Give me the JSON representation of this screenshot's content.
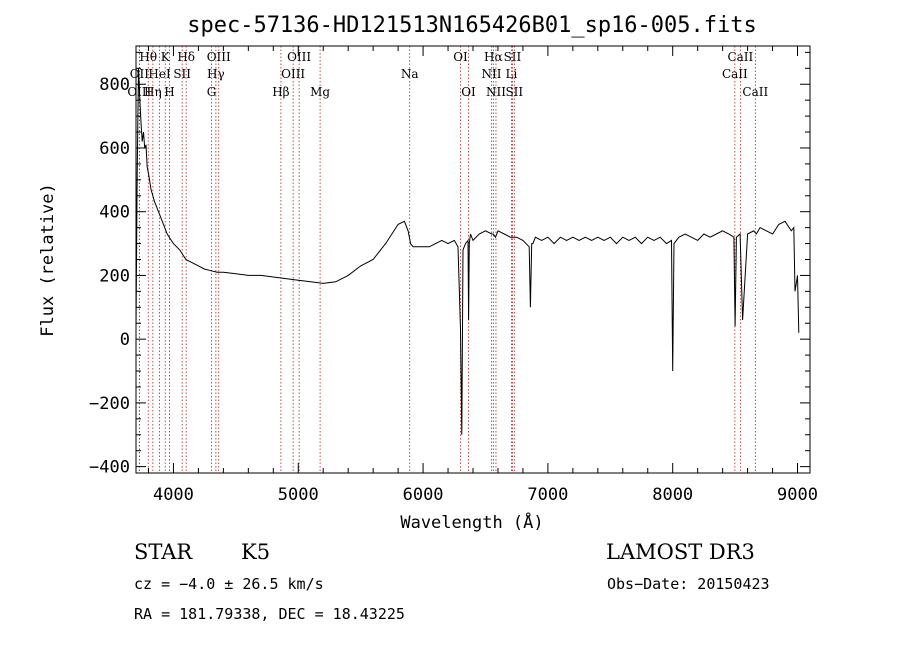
{
  "chart_data": {
    "type": "line",
    "title": "spec-57136-HD121513N165426B01_sp16-005.fits",
    "xlabel": "Wavelength (Å)",
    "ylabel": "Flux (relative)",
    "xlim": [
      3700,
      9100
    ],
    "ylim": [
      -420,
      920
    ],
    "x_ticks": [
      4000,
      5000,
      6000,
      7000,
      8000,
      9000
    ],
    "x_tick_labels": [
      "4000",
      "5000",
      "6000",
      "7000",
      "8000",
      "9000"
    ],
    "y_ticks": [
      -400,
      -200,
      0,
      200,
      400,
      600,
      800
    ],
    "y_tick_labels": [
      "−400",
      "−200",
      "0",
      "200",
      "400",
      "600",
      "800"
    ],
    "series": [
      {
        "name": "spectrum",
        "x": [
          3700,
          3710,
          3720,
          3730,
          3740,
          3750,
          3760,
          3770,
          3780,
          3790,
          3800,
          3820,
          3850,
          3880,
          3900,
          3950,
          4000,
          4050,
          4100,
          4150,
          4200,
          4250,
          4300,
          4350,
          4400,
          4500,
          4600,
          4700,
          4800,
          4900,
          5000,
          5100,
          5200,
          5300,
          5400,
          5500,
          5600,
          5700,
          5750,
          5800,
          5850,
          5880,
          5900,
          5920,
          5950,
          6000,
          6050,
          6100,
          6150,
          6200,
          6250,
          6280,
          6300,
          6310,
          6320,
          6340,
          6360,
          6365,
          6370,
          6380,
          6400,
          6450,
          6500,
          6550,
          6563,
          6580,
          6600,
          6650,
          6700,
          6750,
          6800,
          6850,
          6860,
          6870,
          6880,
          6900,
          6950,
          7000,
          7050,
          7100,
          7150,
          7200,
          7250,
          7300,
          7350,
          7400,
          7450,
          7500,
          7550,
          7600,
          7650,
          7700,
          7750,
          7800,
          7850,
          7900,
          7950,
          7990,
          8000,
          8010,
          8050,
          8100,
          8150,
          8200,
          8250,
          8300,
          8350,
          8400,
          8450,
          8490,
          8500,
          8510,
          8540,
          8560,
          8600,
          8650,
          8670,
          8700,
          8750,
          8800,
          8850,
          8900,
          8950,
          8970,
          8980,
          9000,
          9010
        ],
        "y": [
          30,
          520,
          850,
          760,
          680,
          620,
          650,
          600,
          610,
          540,
          520,
          470,
          430,
          400,
          380,
          330,
          300,
          280,
          250,
          240,
          230,
          220,
          215,
          210,
          210,
          205,
          200,
          200,
          195,
          190,
          185,
          180,
          175,
          180,
          200,
          230,
          250,
          300,
          330,
          360,
          370,
          340,
          300,
          290,
          290,
          290,
          290,
          300,
          310,
          300,
          310,
          290,
          30,
          -300,
          280,
          300,
          310,
          60,
          300,
          330,
          310,
          330,
          340,
          330,
          330,
          320,
          340,
          330,
          320,
          320,
          310,
          290,
          100,
          300,
          300,
          320,
          310,
          320,
          300,
          320,
          310,
          320,
          310,
          320,
          310,
          320,
          310,
          320,
          300,
          320,
          310,
          320,
          300,
          320,
          310,
          320,
          300,
          310,
          -100,
          300,
          320,
          330,
          320,
          310,
          330,
          320,
          330,
          340,
          330,
          320,
          40,
          320,
          330,
          60,
          330,
          340,
          330,
          350,
          340,
          330,
          360,
          370,
          340,
          350,
          150,
          200,
          20
        ]
      }
    ],
    "lines": [
      {
        "label": "Hθ",
        "x": 3798,
        "row": 1
      },
      {
        "label": "OII",
        "x": 3727,
        "row": 2
      },
      {
        "label": "OIII",
        "x": 3727,
        "row": 3
      },
      {
        "label": "K",
        "x": 3934,
        "row": 1
      },
      {
        "label": "HeI",
        "x": 3889,
        "row": 2
      },
      {
        "label": "Hη",
        "x": 3835,
        "row": 3
      },
      {
        "label": "SII",
        "x": 4070,
        "row": 2
      },
      {
        "label": "H",
        "x": 3968,
        "row": 3
      },
      {
        "label": "Hδ",
        "x": 4102,
        "row": 1
      },
      {
        "label": "OIII",
        "x": 4363,
        "row": 1
      },
      {
        "label": "Hγ",
        "x": 4340,
        "row": 2
      },
      {
        "label": "G",
        "x": 4305,
        "row": 3
      },
      {
        "label": "OIII",
        "x": 5007,
        "row": 1
      },
      {
        "label": "OIII",
        "x": 4959,
        "row": 2
      },
      {
        "label": "Hβ",
        "x": 4861,
        "row": 3
      },
      {
        "label": "Mg",
        "x": 5175,
        "row": 3
      },
      {
        "label": "Na",
        "x": 5893,
        "row": 2
      },
      {
        "label": "OI",
        "x": 6300,
        "row": 1
      },
      {
        "label": "OI",
        "x": 6364,
        "row": 3
      },
      {
        "label": "Hα",
        "x": 6563,
        "row": 1
      },
      {
        "label": "SII",
        "x": 6716,
        "row": 1
      },
      {
        "label": "NII",
        "x": 6548,
        "row": 2
      },
      {
        "label": "Li",
        "x": 6708,
        "row": 2
      },
      {
        "label": "NII",
        "x": 6584,
        "row": 3
      },
      {
        "label": "SII",
        "x": 6731,
        "row": 3
      },
      {
        "label": "CaII",
        "x": 8542,
        "row": 1
      },
      {
        "label": "CaII",
        "x": 8498,
        "row": 2
      },
      {
        "label": "CaII",
        "x": 8662,
        "row": 3
      }
    ]
  },
  "info": {
    "object_class": "STAR",
    "subclass": "K5",
    "survey": "LAMOST DR3",
    "cz": "cz = −4.0 ± 26.5 km/s",
    "obs_date": "Obs−Date: 20150423",
    "coords": "RA = 181.79338, DEC =  18.43225"
  },
  "colors": {
    "spectrum": "#000000",
    "line_marker": "#b22222",
    "axis": "#000000"
  }
}
